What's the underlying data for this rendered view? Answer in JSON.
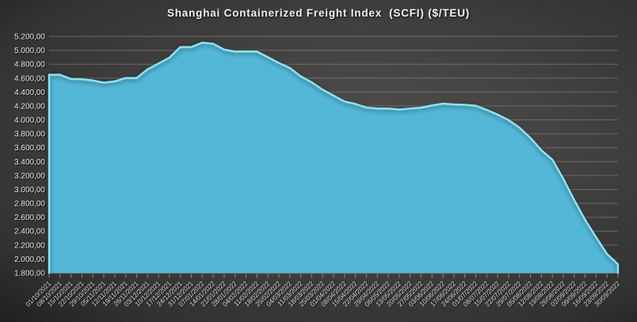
{
  "title": "Shanghai Containerized Freight Index  (SCFI) ($/TEU)",
  "colors": {
    "area_fill": "#53B8D8",
    "area_edge": "#8EE3F2",
    "grid": "#a8a8a8",
    "label": "#e9e9e9",
    "title": "#f2f2f2",
    "background_center": "#504f4d",
    "background_corner": "#101010"
  },
  "chart_data": {
    "type": "area",
    "title": "Shanghai Containerized Freight Index  (SCFI) ($/TEU)",
    "xlabel": "",
    "ylabel": "",
    "ylim": [
      1800,
      5200
    ],
    "ytick_step": 200,
    "grid": true,
    "legend": false,
    "y_tick_labels": [
      "5.200,00",
      "5.000,00",
      "4.800,00",
      "4.600,00",
      "4.400,00",
      "4.200,00",
      "4.000,00",
      "3.800,00",
      "3.600,00",
      "3.400,00",
      "3.200,00",
      "3.000,00",
      "2.800,00",
      "2.600,00",
      "2.400,00",
      "2.200,00",
      "2.000,00",
      "1.800,00"
    ],
    "x": [
      "01/10/2021",
      "08/10/2021",
      "15/10/2021",
      "22/10/2021",
      "29/10/2021",
      "05/11/2021",
      "12/11/2021",
      "19/11/2021",
      "26/11/2021",
      "03/12/2021",
      "10/12/2021",
      "17/12/2021",
      "24/12/2021",
      "31/12/2021",
      "07/01/2022",
      "14/01/2022",
      "21/01/2022",
      "28/01/2022",
      "04/02/2022",
      "11/02/2022",
      "18/02/2022",
      "25/02/2022",
      "04/03/2022",
      "11/03/2022",
      "18/03/2022",
      "25/03/2022",
      "01/04/2022",
      "08/04/2022",
      "15/04/2022",
      "22/04/2022",
      "29/04/2022",
      "06/05/2022",
      "13/05/2022",
      "20/05/2022",
      "27/05/2022",
      "03/06/2022",
      "10/06/2022",
      "17/06/2022",
      "24/06/2022",
      "01/07/2022",
      "08/07/2022",
      "15/07/2022",
      "22/07/2022",
      "29/07/2022",
      "05/08/2022",
      "12/08/2022",
      "19/08/2022",
      "26/08/2022",
      "02/09/2022",
      "09/09/2022",
      "16/09/2022",
      "23/09/2022",
      "30/09/2022"
    ],
    "series": [
      {
        "name": "SCFI",
        "values": [
          4648,
          4648,
          4588,
          4583,
          4567,
          4535,
          4554,
          4602,
          4602,
          4727,
          4811,
          4895,
          5047,
          5047,
          5110,
          5094,
          5010,
          4981,
          4981,
          4981,
          4901,
          4818,
          4747,
          4626,
          4540,
          4434,
          4349,
          4264,
          4229,
          4177,
          4163,
          4163,
          4148,
          4163,
          4175,
          4208,
          4233,
          4222,
          4216,
          4203,
          4144,
          4075,
          3997,
          3888,
          3740,
          3563,
          3430,
          3154,
          2848,
          2562,
          2313,
          2072,
          1923
        ]
      }
    ]
  }
}
